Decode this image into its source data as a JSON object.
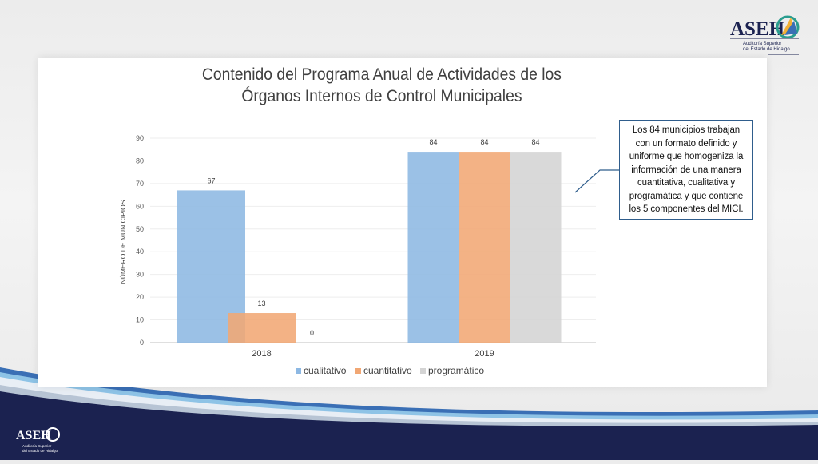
{
  "slide": {
    "title_line1": "Contenido del Programa Anual de Actividades de los",
    "title_line2": "Órganos Internos de Control Municipales",
    "callout_text": "Los 84 municipios trabajan con un formato definido y uniforme que homogeniza la información de una manera cuantitativa, cualitativa y programática y que contiene los 5 componentes del MICI."
  },
  "logo": {
    "name": "ASEH",
    "subtitle_line1": "Auditoría Superior",
    "subtitle_line2": "del Estado de Hidalgo"
  },
  "colors": {
    "cualitativo": "#8db8e3",
    "cuantitativo": "#f1a774",
    "programatico": "#d4d4d4",
    "footer_navy": "#1b2250",
    "accent_blue": "#2f5d8c"
  },
  "chart_data": {
    "type": "bar",
    "title": "Contenido del Programa Anual de Actividades de los Órganos Internos de Control Municipales",
    "categories": [
      "2018",
      "2019"
    ],
    "series": [
      {
        "name": "cualitativo",
        "values": [
          67,
          84
        ],
        "labels": [
          "67",
          "84"
        ]
      },
      {
        "name": "cuantitativo",
        "values": [
          13,
          84
        ],
        "labels": [
          "13",
          "84"
        ]
      },
      {
        "name": "programático",
        "values": [
          0,
          84
        ],
        "labels": [
          "0",
          "84"
        ]
      }
    ],
    "xlabel": "",
    "ylabel": "NÚMERO DE MUNICIPIOS",
    "ylim": [
      0,
      90
    ],
    "yticks": [
      "0",
      "10",
      "20",
      "30",
      "40",
      "50",
      "60",
      "70",
      "80",
      "90"
    ],
    "grid": true,
    "legend": "bottom"
  }
}
